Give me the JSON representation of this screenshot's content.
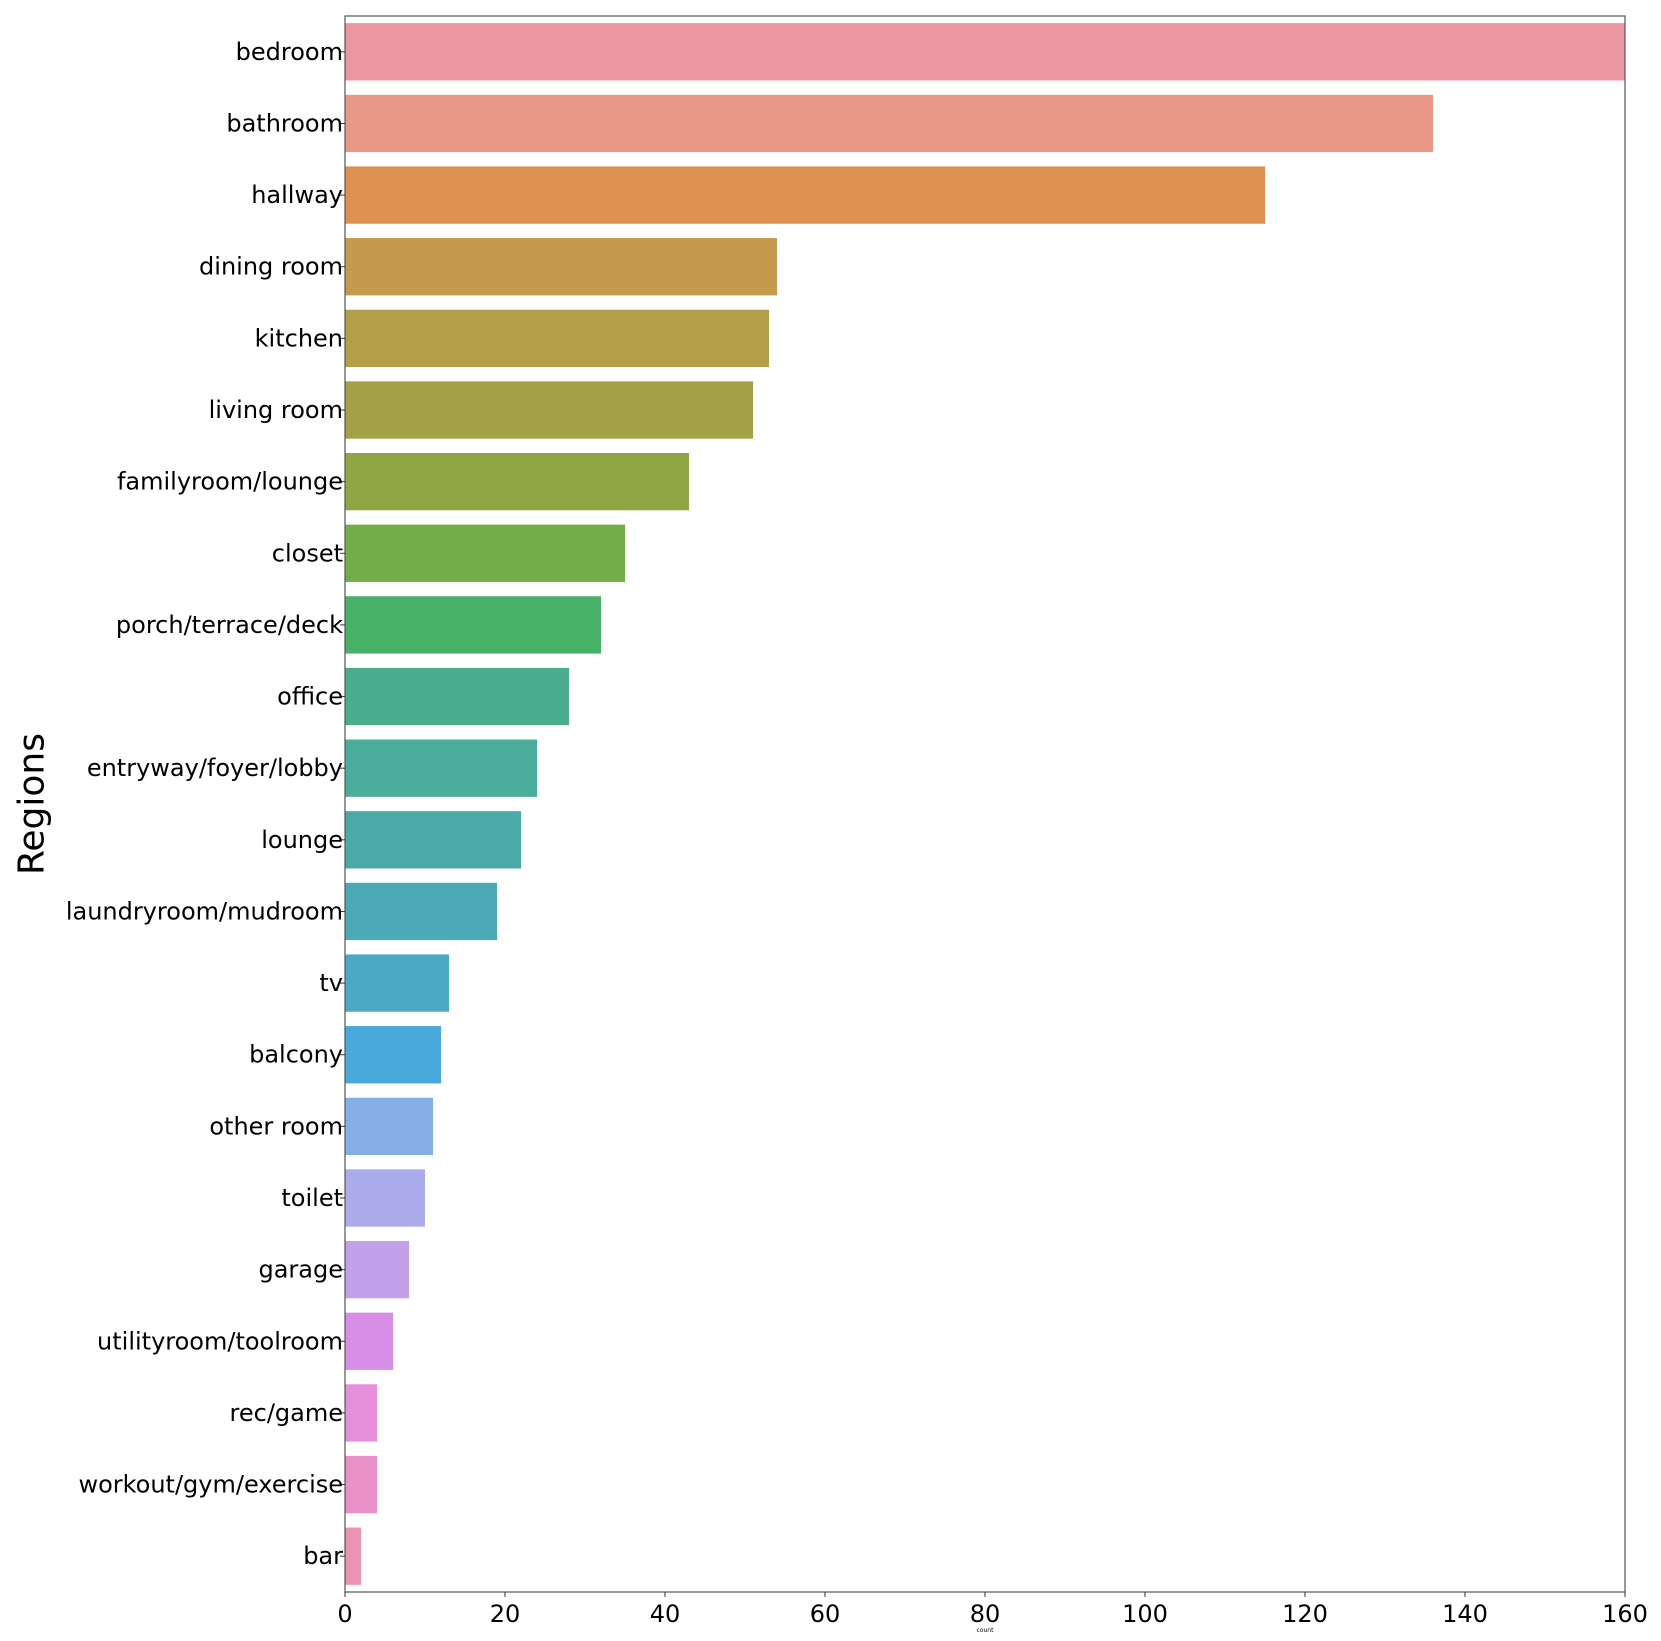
{
  "chart_data": {
    "type": "bar",
    "orientation": "horizontal",
    "categories": [
      "bedroom",
      "bathroom",
      "hallway",
      "dining room",
      "kitchen",
      "living room",
      "familyroom/lounge",
      "closet",
      "porch/terrace/deck",
      "office",
      "entryway/foyer/lobby",
      "lounge",
      "laundryroom/mudroom",
      "tv",
      "balcony",
      "other room",
      "toilet",
      "garage",
      "utilityroom/toolroom",
      "rec/game",
      "workout/gym/exercise",
      "bar"
    ],
    "values": [
      160,
      136,
      115,
      54,
      53,
      51,
      43,
      35,
      32,
      28,
      24,
      22,
      19,
      13,
      12,
      11,
      10,
      8,
      6,
      4,
      4,
      2
    ],
    "colors": [
      "#eb96a1",
      "#e99887",
      "#dc914e",
      "#c59a4c",
      "#b39f47",
      "#a3a045",
      "#90a645",
      "#73ad48",
      "#47b167",
      "#4aad8d",
      "#4aad9b",
      "#4aaaa7",
      "#4baab6",
      "#4ca9c4",
      "#4aa9dc",
      "#86aee6",
      "#aaaceb",
      "#c3a0ea",
      "#d78ee6",
      "#e68fdb",
      "#ea91c9",
      "#eb93b5"
    ],
    "xlabel": "count",
    "ylabel": "Regions",
    "xlim": [
      0,
      160
    ],
    "xticks": [
      0,
      20,
      40,
      60,
      80,
      100,
      120,
      140,
      160
    ],
    "grid": false,
    "legend": "none"
  }
}
